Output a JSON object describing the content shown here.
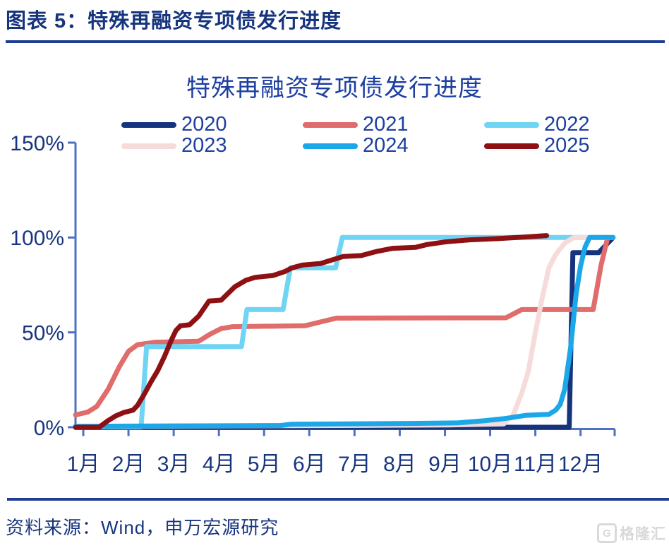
{
  "header": {
    "title": "图表 5：特殊再融资专项债发行进度"
  },
  "footer": {
    "source": "资料来源：Wind，申万宏源研究",
    "watermark": "格隆汇",
    "watermark_logo": "G"
  },
  "colors": {
    "navy_text": "#17357E",
    "title_blue": "#1C3FA0",
    "accent_rule": "#1F3E90",
    "axis": "#4C72C0",
    "watermark_gray": "#D9D9D9"
  },
  "chart_data": {
    "type": "line",
    "title": "特殊再融资专项债发行进度",
    "xlabel": "",
    "ylabel": "",
    "x_unit": "month",
    "x_ticks": [
      "1月",
      "2月",
      "3月",
      "4月",
      "5月",
      "6月",
      "7月",
      "8月",
      "9月",
      "10月",
      "11月",
      "12月"
    ],
    "y_ticks": [
      "0%",
      "50%",
      "100%",
      "150%"
    ],
    "y_tick_values": [
      0,
      50,
      100,
      150
    ],
    "ylim": [
      0,
      150
    ],
    "xlim": [
      0.83,
      12.72
    ],
    "grid": false,
    "legend_position": "top",
    "series": [
      {
        "name": "2020",
        "color": "#16337E",
        "points": [
          [
            0.83,
            0
          ],
          [
            11.75,
            0
          ],
          [
            11.83,
            92
          ],
          [
            12.4,
            92
          ],
          [
            12.72,
            100
          ]
        ]
      },
      {
        "name": "2021",
        "color": "#E06C6C",
        "points": [
          [
            0.83,
            6.5
          ],
          [
            1.1,
            8
          ],
          [
            1.3,
            11
          ],
          [
            1.55,
            20
          ],
          [
            1.8,
            32
          ],
          [
            2.0,
            40
          ],
          [
            2.2,
            43.5
          ],
          [
            2.6,
            44.8
          ],
          [
            3.55,
            45.3
          ],
          [
            3.8,
            49
          ],
          [
            4.05,
            52
          ],
          [
            4.3,
            53
          ],
          [
            5.9,
            53.5
          ],
          [
            6.25,
            55.5
          ],
          [
            6.6,
            57.5
          ],
          [
            10.35,
            57.7
          ],
          [
            10.7,
            62
          ],
          [
            12.28,
            62
          ],
          [
            12.45,
            85
          ],
          [
            12.6,
            100
          ]
        ]
      },
      {
        "name": "2022",
        "color": "#70D4F4",
        "points": [
          [
            0.83,
            0.3
          ],
          [
            2.28,
            0.3
          ],
          [
            2.4,
            42.5
          ],
          [
            4.5,
            42.5
          ],
          [
            4.62,
            62
          ],
          [
            5.42,
            62
          ],
          [
            5.58,
            84
          ],
          [
            6.58,
            84
          ],
          [
            6.73,
            100
          ],
          [
            12.72,
            100
          ]
        ]
      },
      {
        "name": "2023",
        "color": "#F6DBDB",
        "points": [
          [
            0.83,
            0.4
          ],
          [
            5.0,
            0.8
          ],
          [
            9.0,
            1.2
          ],
          [
            10.3,
            1.8
          ],
          [
            10.5,
            6
          ],
          [
            10.7,
            18
          ],
          [
            10.85,
            30
          ],
          [
            11.0,
            50
          ],
          [
            11.15,
            68
          ],
          [
            11.3,
            84
          ],
          [
            11.45,
            91
          ],
          [
            11.65,
            97
          ],
          [
            11.85,
            100
          ],
          [
            12.72,
            100
          ]
        ]
      },
      {
        "name": "2024",
        "color": "#1CA7E9",
        "points": [
          [
            0.83,
            0.5
          ],
          [
            3.0,
            0.7
          ],
          [
            5.35,
            0.9
          ],
          [
            5.6,
            1.6
          ],
          [
            8.2,
            2
          ],
          [
            9.3,
            2.3
          ],
          [
            9.9,
            3.5
          ],
          [
            10.3,
            4.5
          ],
          [
            10.8,
            6.3
          ],
          [
            11.3,
            6.8
          ],
          [
            11.45,
            9
          ],
          [
            11.55,
            12
          ],
          [
            11.65,
            20
          ],
          [
            11.78,
            42
          ],
          [
            11.9,
            70
          ],
          [
            12.0,
            85
          ],
          [
            12.1,
            95
          ],
          [
            12.2,
            100
          ],
          [
            12.72,
            100
          ]
        ]
      },
      {
        "name": "2025",
        "color": "#8F1013",
        "points": [
          [
            0.83,
            0
          ],
          [
            1.35,
            0
          ],
          [
            1.55,
            3.5
          ],
          [
            1.72,
            6
          ],
          [
            1.9,
            7.8
          ],
          [
            2.1,
            9
          ],
          [
            2.2,
            11.5
          ],
          [
            2.35,
            17.5
          ],
          [
            2.5,
            24
          ],
          [
            2.65,
            30
          ],
          [
            2.8,
            37.5
          ],
          [
            2.95,
            46
          ],
          [
            3.05,
            51
          ],
          [
            3.15,
            53.5
          ],
          [
            3.35,
            54
          ],
          [
            3.55,
            58.5
          ],
          [
            3.68,
            63
          ],
          [
            3.78,
            66.5
          ],
          [
            4.05,
            67
          ],
          [
            4.2,
            70.5
          ],
          [
            4.35,
            74
          ],
          [
            4.6,
            77.5
          ],
          [
            4.8,
            79
          ],
          [
            5.2,
            80
          ],
          [
            5.45,
            82
          ],
          [
            5.62,
            84
          ],
          [
            5.85,
            85.5
          ],
          [
            6.25,
            86.3
          ],
          [
            6.55,
            88.5
          ],
          [
            6.75,
            90
          ],
          [
            7.15,
            90.5
          ],
          [
            7.5,
            92.7
          ],
          [
            7.85,
            94.3
          ],
          [
            8.35,
            94.8
          ],
          [
            8.6,
            96.3
          ],
          [
            9.05,
            97.8
          ],
          [
            9.55,
            98.8
          ],
          [
            10.2,
            99.5
          ],
          [
            10.8,
            100.3
          ],
          [
            11.25,
            101
          ]
        ]
      }
    ]
  }
}
